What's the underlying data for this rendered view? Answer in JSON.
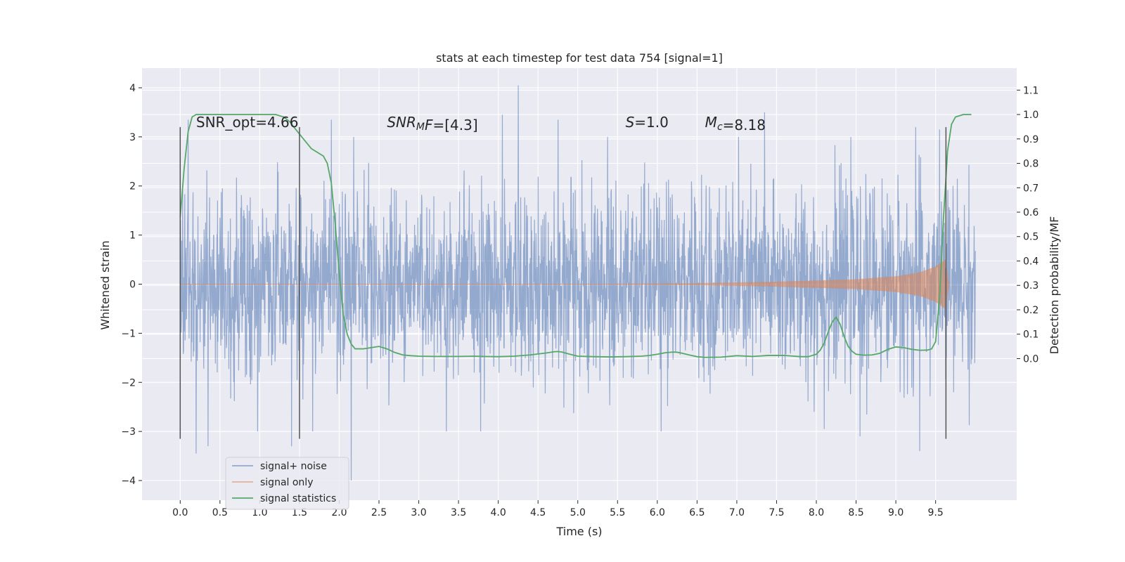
{
  "chart_data": {
    "type": "line",
    "title": "stats at each timestep for test data 754 [signal=1]",
    "xlabel": "Time (s)",
    "ylabel": "Whitened strain",
    "ylabel_right": "Detection probability/MF",
    "xlim": [
      -0.48,
      10.52
    ],
    "ylim": [
      -4.4,
      4.4
    ],
    "ylim_right": [
      -0.58,
      1.19
    ],
    "xticks": [
      0.0,
      0.5,
      1.0,
      1.5,
      2.0,
      2.5,
      3.0,
      3.5,
      4.0,
      4.5,
      5.0,
      5.5,
      6.0,
      6.5,
      7.0,
      7.5,
      8.0,
      8.5,
      9.0,
      9.5
    ],
    "xtick_labels": [
      "0.0",
      "0.5",
      "1.0",
      "1.5",
      "2.0",
      "2.5",
      "3.0",
      "3.5",
      "4.0",
      "4.5",
      "5.0",
      "5.5",
      "6.0",
      "6.5",
      "7.0",
      "7.5",
      "8.0",
      "8.5",
      "9.0",
      "9.5"
    ],
    "yticks": [
      -4,
      -3,
      -2,
      -1,
      0,
      1,
      2,
      3,
      4
    ],
    "ytick_labels": [
      "−4",
      "−3",
      "−2",
      "−1",
      "0",
      "1",
      "2",
      "3",
      "4"
    ],
    "yticks_right": [
      0.0,
      0.1,
      0.2,
      0.3,
      0.4,
      0.5,
      0.6,
      0.7,
      0.8,
      0.9,
      1.0,
      1.1
    ],
    "ytick_labels_right": [
      "0.0",
      "0.1",
      "0.2",
      "0.3",
      "0.4",
      "0.5",
      "0.6",
      "0.7",
      "0.8",
      "0.9",
      "1.0",
      "1.1"
    ],
    "grid": true,
    "legend_position": "lower-left",
    "annotations": [
      {
        "parts": [
          {
            "t": "SNR_opt=4.66"
          }
        ],
        "x": 0.2,
        "y": 3.2
      },
      {
        "parts": [
          {
            "t": "SNR",
            "i": true
          },
          {
            "t": "M",
            "i": true,
            "sub": true
          },
          {
            "t": "F",
            "i": true
          },
          {
            "t": "=[4.3]"
          }
        ],
        "x": 2.6,
        "y": 3.2
      },
      {
        "parts": [
          {
            "t": "S",
            "i": true
          },
          {
            "t": "=1.0"
          }
        ],
        "x": 5.6,
        "y": 3.2
      },
      {
        "parts": [
          {
            "t": "M",
            "i": true
          },
          {
            "t": "c",
            "i": true,
            "sub": true
          },
          {
            "t": "=8.18"
          }
        ],
        "x": 6.6,
        "y": 3.2
      }
    ],
    "vlines": [
      {
        "x": 0.0,
        "ymin": -3.15,
        "ymax": 3.2
      },
      {
        "x": 1.5,
        "ymin": -3.15,
        "ymax": 3.2
      },
      {
        "x": 9.63,
        "ymin": -3.15,
        "ymax": 3.2
      }
    ],
    "series": [
      {
        "name": "signal+ noise",
        "color": "#4c72b0",
        "axis": "left",
        "kind": "noise",
        "x_range": [
          0.0,
          10.0
        ],
        "std": 0.95,
        "peaks": [
          [
            0.1,
            3.35
          ],
          [
            0.2,
            -3.45
          ],
          [
            0.35,
            -3.3
          ],
          [
            1.4,
            -3.3
          ],
          [
            1.9,
            3.35
          ],
          [
            2.15,
            -4.0
          ],
          [
            4.25,
            4.05
          ],
          [
            4.05,
            3.45
          ],
          [
            4.75,
            3.35
          ],
          [
            6.05,
            -3.0
          ],
          [
            7.35,
            3.5
          ],
          [
            8.1,
            -2.95
          ],
          [
            8.55,
            -3.1
          ],
          [
            9.25,
            3.2
          ],
          [
            9.3,
            -3.4
          ],
          [
            9.55,
            3.15
          ]
        ]
      },
      {
        "name": "signal only",
        "color": "#dd8452",
        "axis": "left",
        "kind": "chirp",
        "x_range": [
          5.5,
          9.67
        ],
        "amp_points": [
          [
            5.5,
            0.01
          ],
          [
            6.5,
            0.02
          ],
          [
            7.5,
            0.05
          ],
          [
            8.5,
            0.1
          ],
          [
            9.0,
            0.16
          ],
          [
            9.3,
            0.24
          ],
          [
            9.5,
            0.36
          ],
          [
            9.62,
            0.5
          ],
          [
            9.67,
            0.0
          ]
        ]
      },
      {
        "name": "signal statistics",
        "color": "#55a868",
        "axis": "right",
        "x": [
          0.0,
          0.05,
          0.1,
          0.15,
          0.2,
          0.3,
          0.5,
          0.7,
          1.0,
          1.2,
          1.3,
          1.38,
          1.45,
          1.5,
          1.55,
          1.6,
          1.65,
          1.7,
          1.75,
          1.8,
          1.85,
          1.9,
          1.95,
          2.0,
          2.05,
          2.1,
          2.15,
          2.2,
          2.3,
          2.4,
          2.5,
          2.6,
          2.7,
          2.8,
          2.9,
          3.0,
          3.2,
          3.5,
          3.7,
          3.8,
          4.0,
          4.2,
          4.4,
          4.6,
          4.7,
          4.75,
          4.8,
          4.9,
          5.0,
          5.2,
          5.4,
          5.6,
          5.8,
          5.9,
          6.0,
          6.1,
          6.2,
          6.25,
          6.3,
          6.4,
          6.5,
          6.6,
          6.8,
          7.0,
          7.2,
          7.4,
          7.6,
          7.8,
          7.9,
          8.0,
          8.05,
          8.1,
          8.15,
          8.2,
          8.25,
          8.3,
          8.35,
          8.4,
          8.45,
          8.5,
          8.6,
          8.7,
          8.8,
          8.9,
          9.0,
          9.1,
          9.2,
          9.3,
          9.4,
          9.45,
          9.5,
          9.55,
          9.6,
          9.65,
          9.7,
          9.75,
          9.8,
          9.85,
          9.9,
          9.95
        ],
        "values": [
          0.58,
          0.78,
          0.93,
          0.99,
          1.0,
          1.0,
          1.0,
          1.0,
          1.0,
          1.0,
          0.99,
          0.97,
          0.94,
          0.92,
          0.9,
          0.88,
          0.86,
          0.85,
          0.84,
          0.83,
          0.8,
          0.72,
          0.55,
          0.35,
          0.18,
          0.1,
          0.06,
          0.04,
          0.04,
          0.045,
          0.05,
          0.04,
          0.025,
          0.015,
          0.012,
          0.01,
          0.009,
          0.009,
          0.01,
          0.009,
          0.008,
          0.01,
          0.015,
          0.023,
          0.028,
          0.029,
          0.027,
          0.018,
          0.01,
          0.008,
          0.007,
          0.008,
          0.01,
          0.013,
          0.018,
          0.024,
          0.027,
          0.026,
          0.023,
          0.015,
          0.008,
          0.005,
          0.006,
          0.012,
          0.009,
          0.013,
          0.013,
          0.008,
          0.008,
          0.018,
          0.035,
          0.065,
          0.11,
          0.15,
          0.17,
          0.14,
          0.09,
          0.05,
          0.03,
          0.018,
          0.014,
          0.015,
          0.022,
          0.038,
          0.048,
          0.045,
          0.038,
          0.034,
          0.035,
          0.04,
          0.07,
          0.25,
          0.58,
          0.85,
          0.96,
          0.99,
          0.995,
          1.0,
          1.0,
          1.0
        ]
      }
    ]
  }
}
